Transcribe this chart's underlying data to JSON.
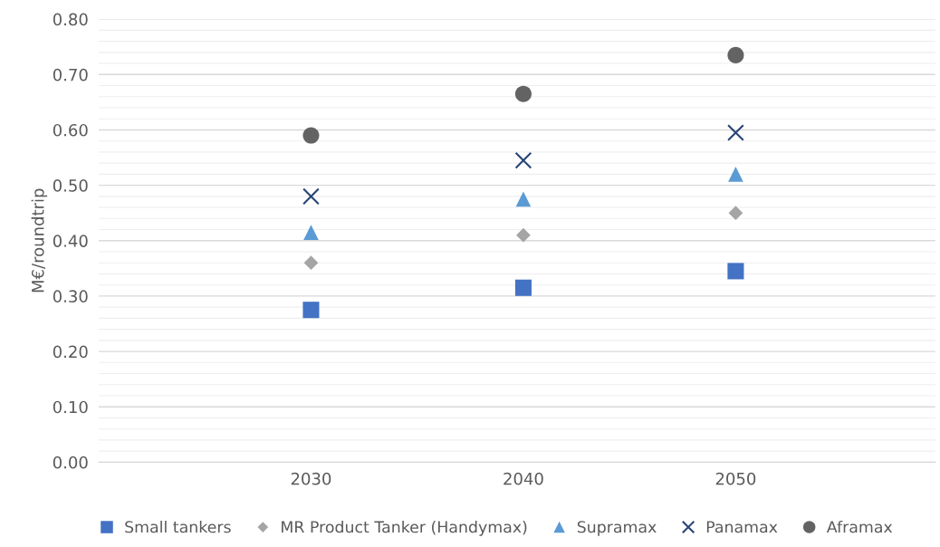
{
  "chart_data": {
    "type": "scatter",
    "ylabel": "M€/roundtrip",
    "categories": [
      "2030",
      "2040",
      "2050"
    ],
    "series": [
      {
        "name": "Small tankers",
        "color": "#4472c4",
        "marker": "square",
        "values": [
          0.275,
          0.315,
          0.345
        ]
      },
      {
        "name": "MR Product Tanker (Handymax)",
        "color": "#a5a5a5",
        "marker": "diamond",
        "values": [
          0.36,
          0.41,
          0.45
        ]
      },
      {
        "name": "Supramax",
        "color": "#5b9bd5",
        "marker": "triangle",
        "values": [
          0.415,
          0.475,
          0.52
        ]
      },
      {
        "name": "Panamax",
        "color": "#264478",
        "marker": "cross",
        "values": [
          0.48,
          0.545,
          0.595
        ]
      },
      {
        "name": "Aframax",
        "color": "#636363",
        "marker": "circle",
        "values": [
          0.59,
          0.665,
          0.735
        ]
      }
    ],
    "ylim": [
      0,
      0.8
    ],
    "yticks": [
      {
        "value": 0,
        "label": "0.00"
      },
      {
        "value": 0.1,
        "label": "0.10"
      },
      {
        "value": 0.2,
        "label": "0.20"
      },
      {
        "value": 0.3,
        "label": "0.30"
      },
      {
        "value": 0.4,
        "label": "0.40"
      },
      {
        "value": 0.5,
        "label": "0.50"
      },
      {
        "value": 0.6,
        "label": "0.60"
      },
      {
        "value": 0.7,
        "label": "0.70"
      },
      {
        "value": 0.8,
        "label": "0.80"
      }
    ],
    "grid": "y",
    "legend": "bottom"
  }
}
